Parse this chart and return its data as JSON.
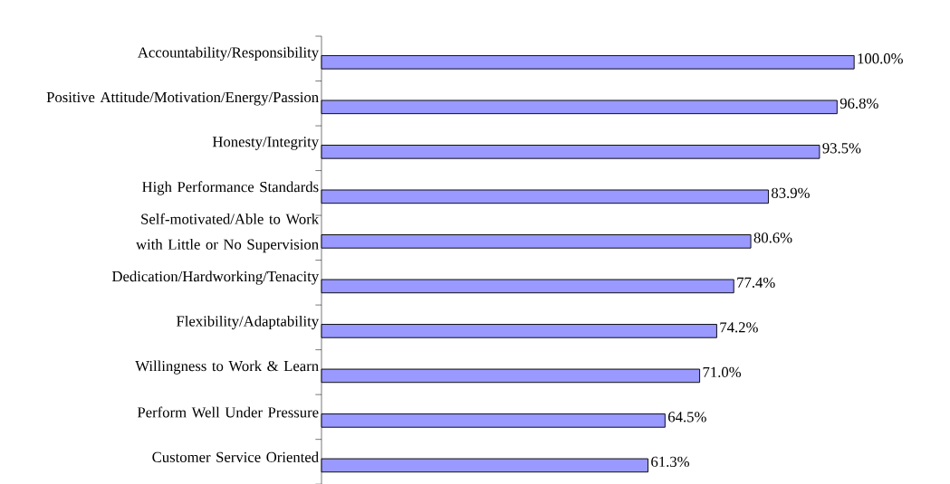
{
  "chart_data": {
    "type": "bar",
    "orientation": "horizontal",
    "color": "#9999ff",
    "categories": [
      "Accountability/Responsibility",
      "Positive Attitude/Motivation/Energy/Passion",
      "Honesty/Integrity",
      "High Performance Standards",
      "Self-motivated/Able to Work with Little or No Supervision",
      "Dedication/Hardworking/Tenacity",
      "Flexibility/Adaptability",
      "Willingness to Work & Learn",
      "Perform Well Under Pressure",
      "Customer Service Oriented"
    ],
    "values": [
      100.0,
      96.8,
      93.5,
      83.9,
      80.6,
      77.4,
      74.2,
      71.0,
      64.5,
      61.3
    ],
    "value_labels": [
      "100.0%",
      "96.8%",
      "93.5%",
      "83.9%",
      "80.6%",
      "77.4%",
      "74.2%",
      "71.0%",
      "64.5%",
      "61.3%"
    ]
  }
}
